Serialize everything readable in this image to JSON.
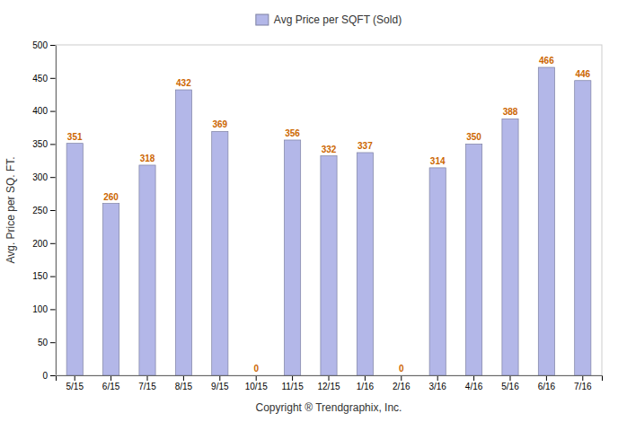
{
  "chart_data": {
    "type": "bar",
    "categories": [
      "5/15",
      "6/15",
      "7/15",
      "8/15",
      "9/15",
      "10/15",
      "11/15",
      "12/15",
      "1/16",
      "2/16",
      "3/16",
      "4/16",
      "5/16",
      "6/16",
      "7/16"
    ],
    "series": [
      {
        "name": "Avg Price per SQFT (Sold)",
        "color": "#b3b7e8",
        "values": [
          351,
          260,
          318,
          432,
          369,
          0,
          356,
          332,
          337,
          0,
          314,
          350,
          388,
          466,
          446
        ]
      }
    ],
    "xlabel": "Copyright ® Trendgraphix, Inc.",
    "ylabel": "Avg. Price per SQ. FT.",
    "ylim": [
      0,
      500
    ],
    "yticks": [
      0,
      50,
      100,
      150,
      200,
      250,
      300,
      350,
      400,
      450,
      500
    ],
    "grid": false,
    "legend": "top",
    "data_labels": true
  }
}
